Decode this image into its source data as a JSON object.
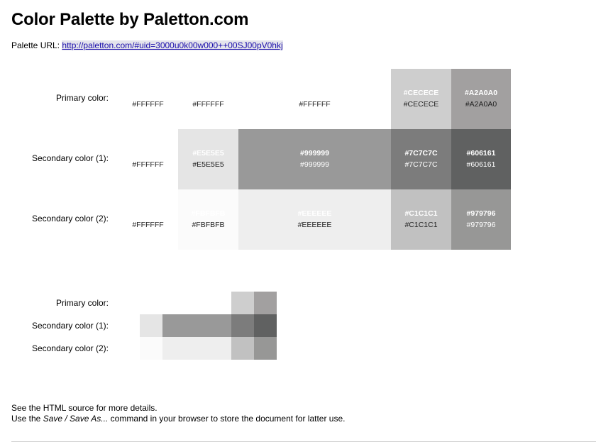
{
  "page": {
    "title": "Color Palette by Paletton.com",
    "url_label": "Palette URL:",
    "url": "http://paletton.com/#uid=3000u0k00w000++00SJ00pV0hkj"
  },
  "rows": [
    {
      "label": "Primary color:",
      "cells": [
        {
          "color": "#FFFFFF",
          "top_text": "",
          "bottom_text": "#FFFFFF"
        },
        {
          "color": "#FFFFFF",
          "top_text": "",
          "bottom_text": "#FFFFFF"
        },
        {
          "color": "#FFFFFF",
          "top_text": "",
          "bottom_text": "#FFFFFF"
        },
        {
          "color": "#CECECE",
          "top_text": "#CECECE",
          "bottom_text": "#CECECE"
        },
        {
          "color": "#A2A0A0",
          "top_text": "#A2A0A0",
          "bottom_text": "#A2A0A0"
        }
      ]
    },
    {
      "label": "Secondary color (1):",
      "cells": [
        {
          "color": "#FFFFFF",
          "top_text": "",
          "bottom_text": "#FFFFFF"
        },
        {
          "color": "#E5E5E5",
          "top_text": "#E5E5E5",
          "bottom_text": "#E5E5E5"
        },
        {
          "color": "#999999",
          "top_text": "#999999",
          "bottom_text": "#999999"
        },
        {
          "color": "#7C7C7C",
          "top_text": "#7C7C7C",
          "bottom_text": "#7C7C7C"
        },
        {
          "color": "#606161",
          "top_text": "#606161",
          "bottom_text": "#606161"
        }
      ]
    },
    {
      "label": "Secondary color (2):",
      "cells": [
        {
          "color": "#FFFFFF",
          "top_text": "",
          "bottom_text": "#FFFFFF"
        },
        {
          "color": "#FBFBFB",
          "top_text": "#FBFBFB",
          "bottom_text": "#FBFBFB"
        },
        {
          "color": "#EEEEEE",
          "top_text": "#EEEEEE",
          "bottom_text": "#EEEEEE"
        },
        {
          "color": "#C1C1C1",
          "top_text": "#C1C1C1",
          "bottom_text": "#C1C1C1"
        },
        {
          "color": "#979796",
          "top_text": "#979796",
          "bottom_text": "#979796"
        }
      ]
    }
  ],
  "footer": {
    "line1": "See the HTML source for more details.",
    "line2_pre": "Use the ",
    "line2_em": "Save / Save As...",
    "line2_post": " command in your browser to store the document for latter use."
  }
}
